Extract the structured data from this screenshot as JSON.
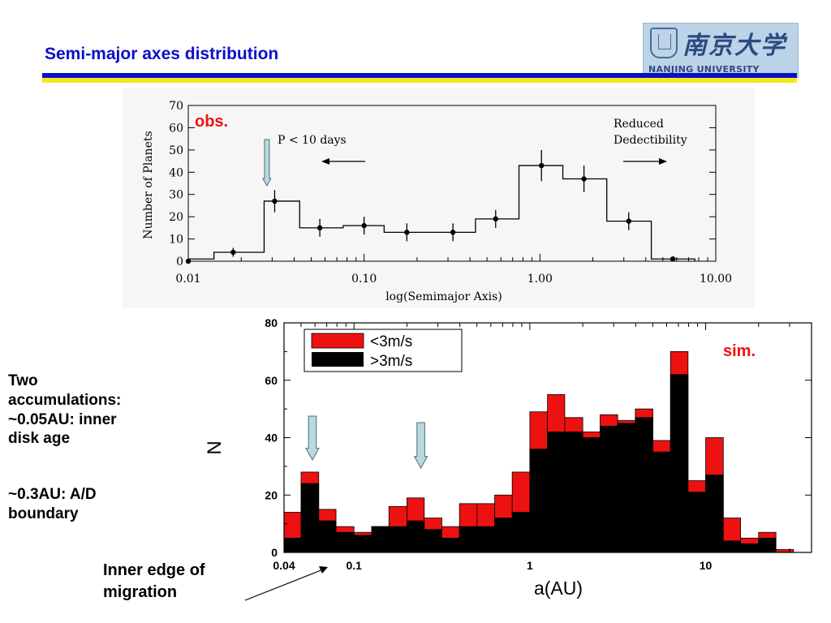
{
  "slide_title": "Semi-major axes  distribution",
  "logo": {
    "emblem": "seal-emblem",
    "cn_text": "南京大学",
    "en_text": "NANJING UNIVERSITY"
  },
  "colors": {
    "title_blue": "#0a10c8",
    "rule_yellow": "#f5e81a",
    "red": "#ee1111",
    "black": "#000000",
    "arrow_fill": "#bcd8df"
  },
  "annotations": {
    "side_line1": "Two",
    "side_line2": "accumulations:",
    "side_line3": "~0.05AU: inner",
    "side_line4": "disk age",
    "side_line5": "~0.3AU: A/D",
    "side_line6": "boundary",
    "migration_line1": "Inner edge of",
    "migration_line2": "migration"
  },
  "chart_data": [
    {
      "type": "bar",
      "id": "observed",
      "tag": "obs.",
      "xlabel": "log(Semimajor Axis)",
      "ylabel": "Number of Planets",
      "x_scale": "log",
      "xlim": [
        0.01,
        10.0
      ],
      "ylim": [
        0,
        70
      ],
      "x_ticks": [
        "0.01",
        "0.10",
        "1.00",
        "10.00"
      ],
      "y_ticks": [
        "0",
        "10",
        "20",
        "30",
        "40",
        "50",
        "60",
        "70"
      ],
      "bins": [
        {
          "lo": 0.01,
          "hi": 0.014,
          "value": 1
        },
        {
          "lo": 0.014,
          "hi": 0.027,
          "value": 4
        },
        {
          "lo": 0.027,
          "hi": 0.043,
          "value": 27
        },
        {
          "lo": 0.043,
          "hi": 0.076,
          "value": 15
        },
        {
          "lo": 0.076,
          "hi": 0.13,
          "value": 16
        },
        {
          "lo": 0.13,
          "hi": 0.24,
          "value": 13
        },
        {
          "lo": 0.24,
          "hi": 0.43,
          "value": 13
        },
        {
          "lo": 0.43,
          "hi": 0.76,
          "value": 19
        },
        {
          "lo": 0.76,
          "hi": 1.35,
          "value": 43
        },
        {
          "lo": 1.35,
          "hi": 2.4,
          "value": 37
        },
        {
          "lo": 2.4,
          "hi": 4.3,
          "value": 18
        },
        {
          "lo": 4.3,
          "hi": 7.6,
          "value": 1
        }
      ],
      "points": [
        {
          "x": 0.01,
          "y": 0,
          "err": 0
        },
        {
          "x": 0.018,
          "y": 4,
          "err": 2
        },
        {
          "x": 0.031,
          "y": 27,
          "err": 5
        },
        {
          "x": 0.056,
          "y": 15,
          "err": 4
        },
        {
          "x": 0.1,
          "y": 16,
          "err": 4
        },
        {
          "x": 0.175,
          "y": 13,
          "err": 4
        },
        {
          "x": 0.32,
          "y": 13,
          "err": 4
        },
        {
          "x": 0.56,
          "y": 19,
          "err": 4
        },
        {
          "x": 1.02,
          "y": 43,
          "err": 7
        },
        {
          "x": 1.78,
          "y": 37,
          "err": 6
        },
        {
          "x": 3.2,
          "y": 18,
          "err": 4
        },
        {
          "x": 5.7,
          "y": 1,
          "err": 0
        }
      ],
      "text_annotations": {
        "left_label": "P < 10 days",
        "right_label_line1": "Reduced",
        "right_label_line2": "Dedectibility"
      },
      "arrow_marker_x": 0.028
    },
    {
      "type": "bar",
      "id": "simulated",
      "tag": "sim.",
      "xlabel": "a(AU)",
      "ylabel": "N",
      "x_scale": "log",
      "xlim": [
        0.04,
        40
      ],
      "ylim": [
        0,
        80
      ],
      "x_ticks": [
        "0.04",
        "0.1",
        "1",
        "10"
      ],
      "y_ticks": [
        "0",
        "20",
        "40",
        "60",
        "80"
      ],
      "legend": [
        {
          "label": "<3m/s",
          "color": "#ee1111"
        },
        {
          "label": ">3m/s",
          "color": "#000000"
        }
      ],
      "bin_edges": [
        0.04,
        0.05,
        0.063,
        0.079,
        0.1,
        0.126,
        0.158,
        0.2,
        0.251,
        0.316,
        0.398,
        0.501,
        0.631,
        0.794,
        1.0,
        1.26,
        1.58,
        2.0,
        2.51,
        3.16,
        3.98,
        5.01,
        6.31,
        7.94,
        10.0,
        12.6,
        15.8,
        20.0,
        25.1,
        31.6
      ],
      "series": [
        {
          "name": ">3m/s",
          "values": [
            5,
            24,
            11,
            7,
            6,
            9,
            9,
            11,
            8,
            5,
            9,
            9,
            12,
            14,
            36,
            42,
            42,
            40,
            44,
            45,
            47,
            35,
            62,
            21,
            27,
            4,
            3,
            5,
            0
          ]
        },
        {
          "name": "<3m/s",
          "values": [
            14,
            28,
            15,
            9,
            7,
            9,
            16,
            19,
            12,
            9,
            17,
            17,
            20,
            28,
            49,
            55,
            47,
            42,
            48,
            46,
            50,
            39,
            70,
            25,
            40,
            12,
            5,
            7,
            1
          ]
        }
      ],
      "arrow_markers_x": [
        0.058,
        0.24
      ]
    }
  ]
}
